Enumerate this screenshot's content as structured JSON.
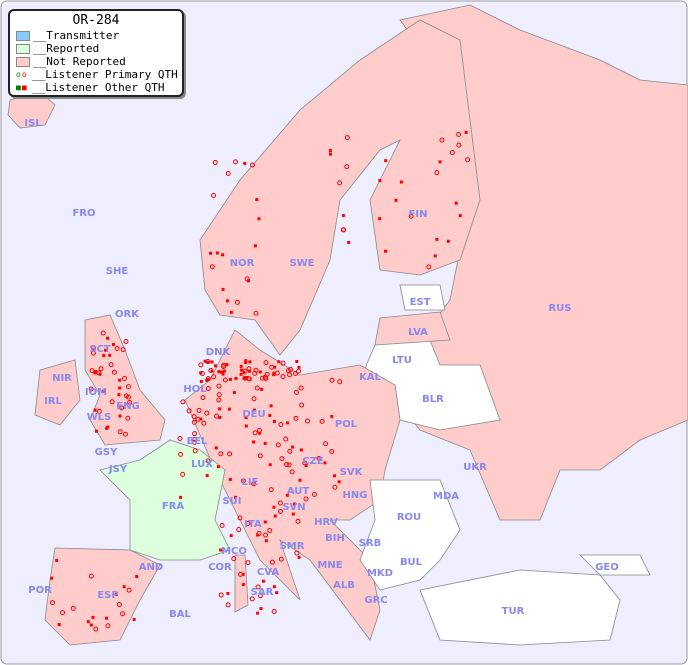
{
  "legend": {
    "title": "OR-284",
    "items": [
      {
        "label": "__Transmitter",
        "color": "#88ccff"
      },
      {
        "label": "__Reported",
        "color": "#ddffdd"
      },
      {
        "label": "__Not Reported",
        "color": "#ffcccc"
      },
      {
        "label": "__Listener Primary QTH",
        "color": "#ff0000"
      },
      {
        "label": "__Listener Other QTH",
        "color": "#ff0000"
      }
    ]
  },
  "colors": {
    "sea": "#eeeeff",
    "not_reported": "#ffcccc",
    "reported": "#ddffdd",
    "no_data": "#ffffff",
    "dot": "#ff0000",
    "label": "#8888ee"
  },
  "countries": [
    "ISL",
    "FRO",
    "SHE",
    "ORK",
    "NOR",
    "SWE",
    "FIN",
    "EST",
    "RUS",
    "LVA",
    "LTU",
    "KAL",
    "DNK",
    "IRL",
    "NIR",
    "SCT",
    "IOM",
    "WLS",
    "ENG",
    "HOL",
    "BEL",
    "DEU",
    "POL",
    "BLR",
    "UKR",
    "CZE",
    "SVK",
    "HNG",
    "AUT",
    "LIE",
    "SUI",
    "LUX",
    "GSY",
    "JSY",
    "FRA",
    "MDA",
    "ROU",
    "SVN",
    "HRV",
    "BIH",
    "SRB",
    "BUL",
    "MNE",
    "ALB",
    "MKD",
    "GRC",
    "TUR",
    "GEO",
    "ITA",
    "SMR",
    "CVA",
    "MCO",
    "COR",
    "AND",
    "POR",
    "ESP",
    "BAL",
    "SAR"
  ]
}
